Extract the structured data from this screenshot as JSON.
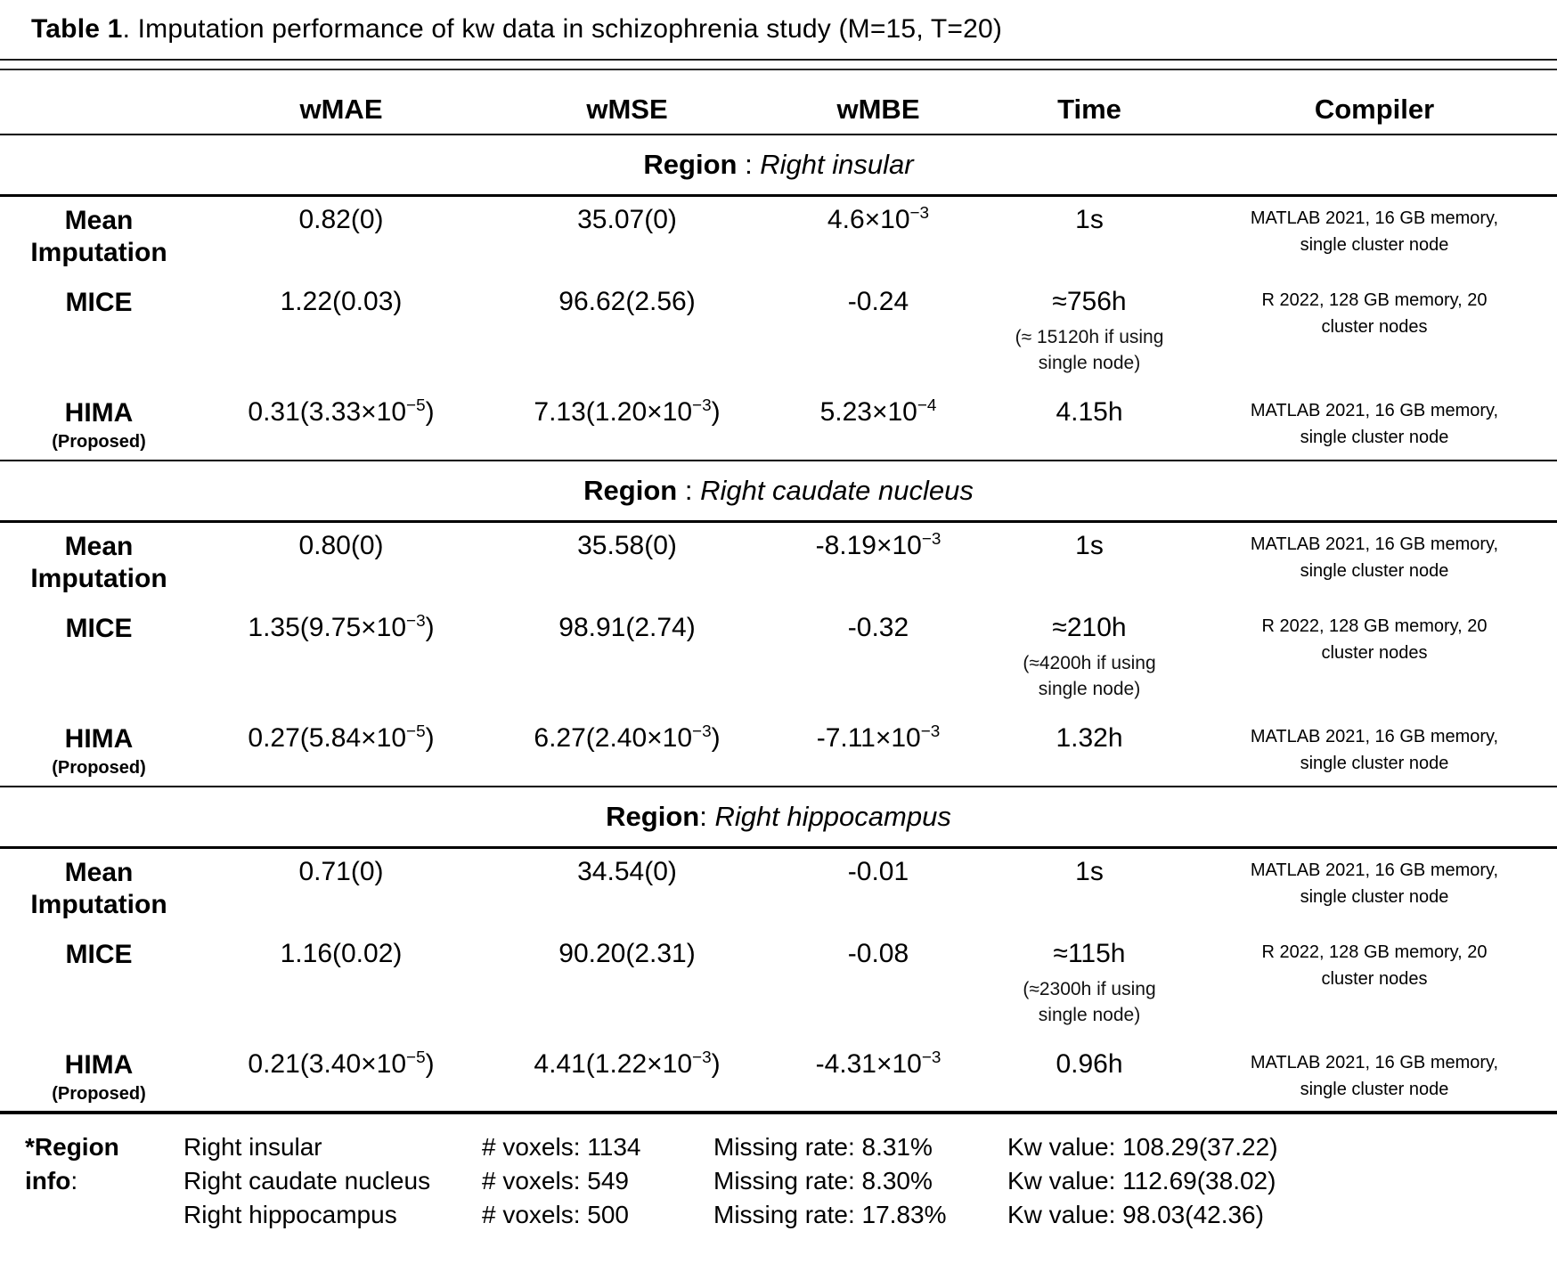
{
  "title": {
    "label": "Table 1",
    "rest": ". Imputation performance of kw data in schizophrenia study (M=15, T=20)"
  },
  "columns": [
    "",
    "wMAE",
    "wMSE",
    "wMBE",
    "Time",
    "Compiler"
  ],
  "sections": [
    {
      "region_label": "Region",
      "region_sep": " : ",
      "region_name": "Right insular",
      "rows": [
        {
          "method": "Mean Imputation",
          "method_note": "",
          "wmae": "0.82(0)",
          "wmse": "35.07(0)",
          "wmbe": "4.6×10^{−3}",
          "time": "1s",
          "time_note": "",
          "compiler": "MATLAB 2021, 16 GB memory, single cluster node"
        },
        {
          "method": "MICE",
          "method_note": "",
          "wmae": "1.22(0.03)",
          "wmse": "96.62(2.56)",
          "wmbe": "-0.24",
          "time": "≈756h",
          "time_note": "(≈ 15120h if using single node)",
          "compiler": "R 2022, 128 GB memory, 20 cluster nodes"
        },
        {
          "method": "HIMA",
          "method_note": "(Proposed)",
          "wmae": "0.31(3.33×10^{−5})",
          "wmse": "7.13(1.20×10^{−3})",
          "wmbe": "5.23×10^{−4}",
          "time": "4.15h",
          "time_note": "",
          "compiler": "MATLAB 2021, 16 GB memory, single cluster node"
        }
      ]
    },
    {
      "region_label": "Region",
      "region_sep": " : ",
      "region_name": "Right caudate nucleus",
      "rows": [
        {
          "method": "Mean Imputation",
          "method_note": "",
          "wmae": "0.80(0)",
          "wmse": "35.58(0)",
          "wmbe": "-8.19×10^{−3}",
          "time": "1s",
          "time_note": "",
          "compiler": "MATLAB 2021, 16 GB memory, single cluster node"
        },
        {
          "method": "MICE",
          "method_note": "",
          "wmae": "1.35(9.75×10^{−3})",
          "wmse": "98.91(2.74)",
          "wmbe": "-0.32",
          "time": "≈210h",
          "time_note": "(≈4200h if using single node)",
          "compiler": "R 2022, 128 GB memory, 20 cluster nodes"
        },
        {
          "method": "HIMA",
          "method_note": "(Proposed)",
          "wmae": "0.27(5.84×10^{−5})",
          "wmse": "6.27(2.40×10^{−3})",
          "wmbe": "-7.11×10^{−3}",
          "time": "1.32h",
          "time_note": "",
          "compiler": "MATLAB 2021, 16 GB memory, single cluster node"
        }
      ]
    },
    {
      "region_label": "Region",
      "region_sep": ": ",
      "region_name": "Right hippocampus",
      "rows": [
        {
          "method": "Mean Imputation",
          "method_note": "",
          "wmae": "0.71(0)",
          "wmse": "34.54(0)",
          "wmbe": "-0.01",
          "time": "1s",
          "time_note": "",
          "compiler": "MATLAB 2021, 16 GB memory, single cluster node"
        },
        {
          "method": "MICE",
          "method_note": "",
          "wmae": "1.16(0.02)",
          "wmse": "90.20(2.31)",
          "wmbe": "-0.08",
          "time": "≈115h",
          "time_note": "(≈2300h if using single node)",
          "compiler": "R 2022, 128 GB memory, 20 cluster nodes"
        },
        {
          "method": "HIMA",
          "method_note": "(Proposed)",
          "wmae": "0.21(3.40×10^{−5})",
          "wmse": "4.41(1.22×10^{−3})",
          "wmbe": "-4.31×10^{−3}",
          "time": "0.96h",
          "time_note": "",
          "compiler": "MATLAB 2021, 16 GB memory, single cluster node"
        }
      ]
    }
  ],
  "footnote": {
    "label": "*Region info",
    "sep": ": ",
    "rows": [
      {
        "region": "Right insular",
        "voxels": "# voxels: 1134",
        "missing": "Missing rate: 8.31%",
        "kw": "Kw value: 108.29(37.22)"
      },
      {
        "region": "Right caudate nucleus",
        "voxels": "# voxels: 549",
        "missing": "Missing rate: 8.30%",
        "kw": "Kw value: 112.69(38.02)"
      },
      {
        "region": "Right hippocampus",
        "voxels": "# voxels: 500",
        "missing": "Missing rate: 17.83%",
        "kw": "Kw value: 98.03(42.36)"
      }
    ]
  }
}
